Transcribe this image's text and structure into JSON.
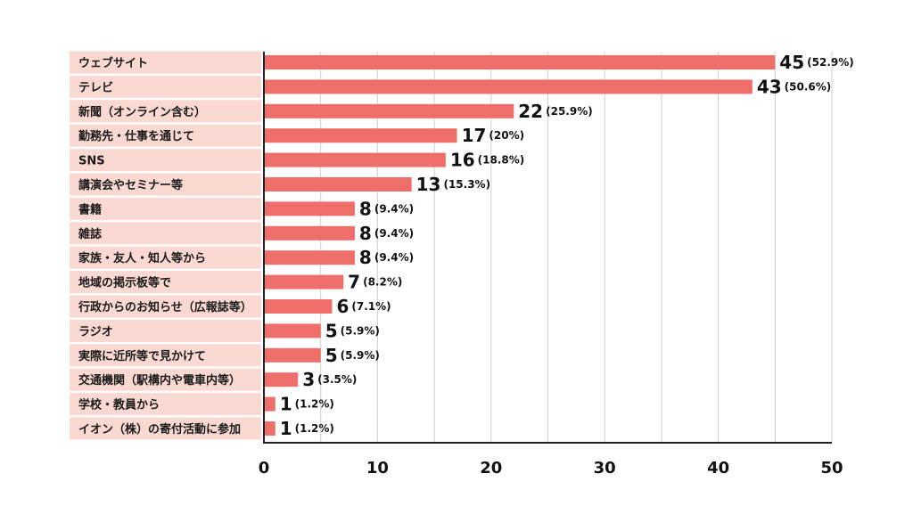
{
  "colors": {
    "bar": "#ee6e6a",
    "label_bg": "#f9d9d2",
    "grid": "#cfcfcf",
    "axis": "#222222"
  },
  "chart_data": {
    "type": "bar",
    "orientation": "horizontal",
    "title": "",
    "xlabel": "",
    "ylabel": "",
    "xlim": [
      0,
      50
    ],
    "xticks": [
      "0",
      "10",
      "20",
      "30",
      "40",
      "50"
    ],
    "grid": true,
    "categories": [
      "ウェブサイト",
      "テレビ",
      "新聞（オンライン含む）",
      "勤務先・仕事を通じて",
      "SNS",
      "講演会やセミナー等",
      "書籍",
      "雑誌",
      "家族・友人・知人等から",
      "地域の掲示板等で",
      "行政からのお知らせ（広報誌等）",
      "ラジオ",
      "実際に近所等で見かけて",
      "交通機関（駅構内や電車内等）",
      "学校・教員から",
      "イオン（株）の寄付活動に参加"
    ],
    "values": [
      45,
      43,
      22,
      17,
      16,
      13,
      8,
      8,
      8,
      7,
      6,
      5,
      5,
      3,
      1,
      1
    ],
    "value_labels": [
      "45",
      "43",
      "22",
      "17",
      "16",
      "13",
      "8",
      "8",
      "8",
      "7",
      "6",
      "5",
      "5",
      "3",
      "1",
      "1"
    ],
    "percent_labels": [
      "(52.9%)",
      "(50.6%)",
      "(25.9%)",
      "(20%)",
      "(18.8%)",
      "(15.3%)",
      "(9.4%)",
      "(9.4%)",
      "(9.4%)",
      "(8.2%)",
      "(7.1%)",
      "(5.9%)",
      "(5.9%)",
      "(3.5%)",
      "(1.2%)",
      "(1.2%)"
    ]
  }
}
